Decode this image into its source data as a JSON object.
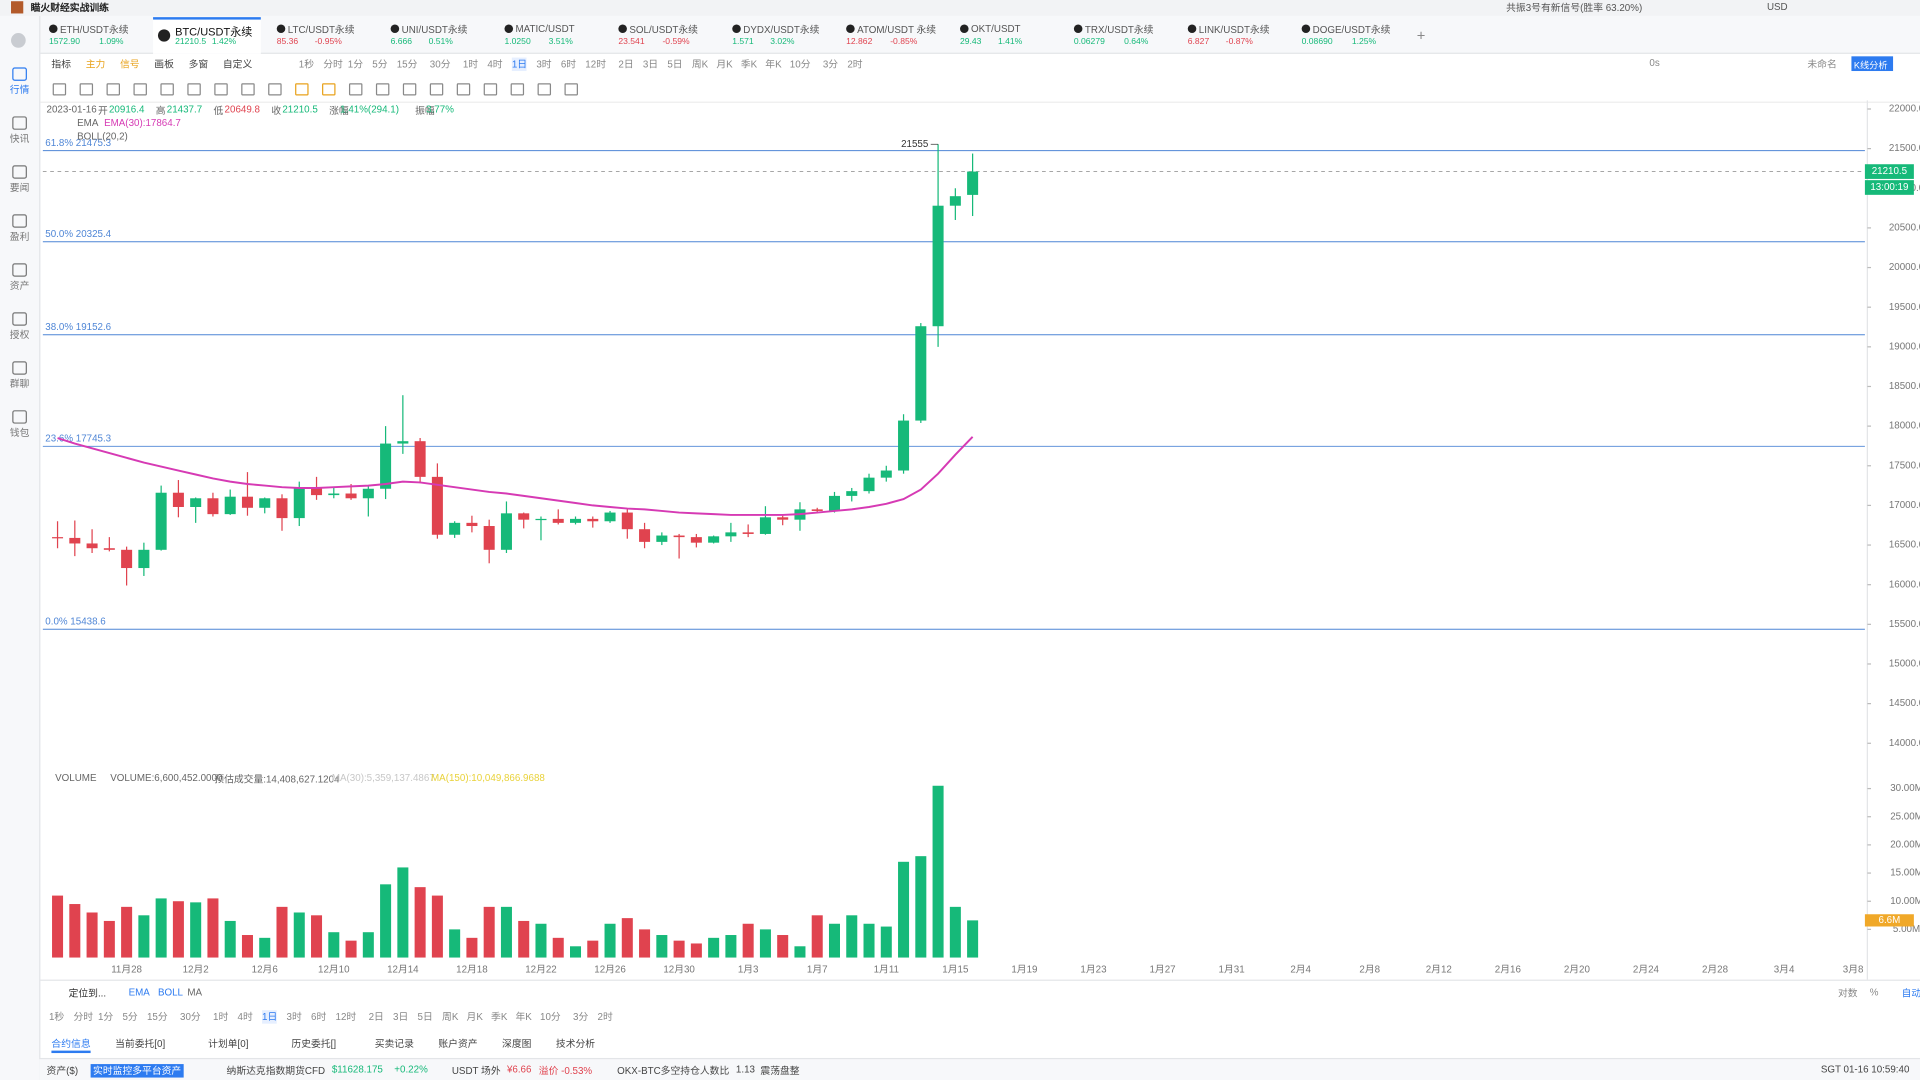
{
  "app": {
    "title": "瞄火财经实战训练",
    "signal": "共振3号有新信号(胜率 63.20%)",
    "currency": "USD"
  },
  "tabs": [
    {
      "name": "ETH/USDT永续",
      "price": "1572.90",
      "change": "1.09%"
    },
    {
      "name": "BTC/USDT永续",
      "price": "21210.5",
      "change": "1.42%"
    },
    {
      "name": "LTC/USDT永续",
      "price": "85.36",
      "change": "-0.95%"
    },
    {
      "name": "UNI/USDT永续",
      "price": "6.666",
      "change": "0.51%"
    },
    {
      "name": "MATIC/USDT",
      "price": "1.0250",
      "change": "3.51%"
    },
    {
      "name": "SOL/USDT永续",
      "price": "23.541",
      "change": "-0.59%"
    },
    {
      "name": "DYDX/USDT永续",
      "price": "1.571",
      "change": "3.02%"
    },
    {
      "name": "ATOM/USDT 永续",
      "price": "12.862",
      "change": "-0.85%"
    },
    {
      "name": "OKT/USDT",
      "price": "29.43",
      "change": "1.41%"
    },
    {
      "name": "TRX/USDT永续",
      "price": "0.06279",
      "change": "0.64%"
    },
    {
      "name": "LINK/USDT永续",
      "price": "6.827",
      "change": "-0.87%"
    },
    {
      "name": "DOGE/USDT永续",
      "price": "0.08690",
      "change": "1.25%"
    }
  ],
  "sidebar": [
    "行情",
    "快讯",
    "要闻",
    "盈利",
    "资产",
    "授权",
    "群聊",
    "钱包"
  ],
  "toolbar": {
    "items": [
      "指标",
      "主力",
      "信号",
      "画板",
      "多窗",
      "自定义"
    ],
    "intervals": [
      "1秒",
      "分时",
      "1分",
      "5分",
      "15分",
      "30分",
      "1时",
      "4时",
      "1日",
      "3时",
      "6时",
      "12时",
      "2日",
      "3日",
      "5日",
      "周K",
      "月K",
      "季K",
      "年K",
      "10分",
      "3分",
      "2时"
    ],
    "right": [
      "0s",
      "未命名",
      "K线分析"
    ]
  },
  "info": {
    "date": "2023-01-16",
    "fields": [
      {
        "label": "开",
        "value": "20916.4"
      },
      {
        "label": "高",
        "value": "21437.7"
      },
      {
        "label": "低",
        "value": "20649.8"
      },
      {
        "label": "收",
        "value": "21210.5"
      },
      {
        "label": "涨幅",
        "value": "1.41%(294.1)"
      },
      {
        "label": "振幅",
        "value": "3.77%"
      }
    ],
    "ema": "EMA",
    "ema_value": "EMA(30):17864.7",
    "boll": "BOLL(20,2)"
  },
  "volume_info": {
    "name": "VOLUME",
    "value": "VOLUME:6,600,452.0000",
    "estimate": "预估成交量:14,408,627.1204",
    "ma1": "MA(30):5,359,137.4867",
    "ma2": "MA(150):10,049,866.9688"
  },
  "chart_data": {
    "type": "candlestick",
    "candles": [
      [
        16600,
        16800,
        16460,
        16590
      ],
      [
        16590,
        16810,
        16360,
        16520
      ],
      [
        16520,
        16700,
        16400,
        16460
      ],
      [
        16460,
        16600,
        16420,
        16440
      ],
      [
        16440,
        16480,
        15990,
        16210
      ],
      [
        16210,
        16530,
        16110,
        16440
      ],
      [
        16440,
        17250,
        16430,
        17160
      ],
      [
        17160,
        17320,
        16850,
        16980
      ],
      [
        16980,
        17100,
        16780,
        17090
      ],
      [
        17090,
        17160,
        16860,
        16890
      ],
      [
        16890,
        17200,
        16880,
        17110
      ],
      [
        17110,
        17420,
        16870,
        16970
      ],
      [
        16970,
        17100,
        16900,
        17090
      ],
      [
        17090,
        17140,
        16680,
        16840
      ],
      [
        16840,
        17300,
        16740,
        17230
      ],
      [
        17230,
        17360,
        17070,
        17130
      ],
      [
        17130,
        17230,
        17090,
        17150
      ],
      [
        17150,
        17270,
        17070,
        17090
      ],
      [
        17090,
        17240,
        16860,
        17210
      ],
      [
        17210,
        18000,
        17080,
        17780
      ],
      [
        17780,
        18390,
        17650,
        17810
      ],
      [
        17810,
        17850,
        17280,
        17360
      ],
      [
        17360,
        17530,
        16580,
        16630
      ],
      [
        16630,
        16800,
        16590,
        16780
      ],
      [
        16780,
        16870,
        16660,
        16740
      ],
      [
        16740,
        16820,
        16270,
        16440
      ],
      [
        16440,
        17050,
        16400,
        16900
      ],
      [
        16900,
        16910,
        16710,
        16820
      ],
      [
        16820,
        16860,
        16560,
        16830
      ],
      [
        16830,
        16950,
        16760,
        16780
      ],
      [
        16780,
        16860,
        16760,
        16830
      ],
      [
        16830,
        16860,
        16720,
        16800
      ],
      [
        16800,
        16930,
        16780,
        16910
      ],
      [
        16910,
        16960,
        16580,
        16700
      ],
      [
        16700,
        16780,
        16460,
        16540
      ],
      [
        16540,
        16660,
        16500,
        16620
      ],
      [
        16620,
        16640,
        16330,
        16600
      ],
      [
        16600,
        16640,
        16470,
        16530
      ],
      [
        16530,
        16620,
        16520,
        16610
      ],
      [
        16610,
        16780,
        16540,
        16660
      ],
      [
        16660,
        16760,
        16600,
        16640
      ],
      [
        16640,
        16990,
        16630,
        16850
      ],
      [
        16850,
        16870,
        16750,
        16820
      ],
      [
        16820,
        17040,
        16680,
        16950
      ],
      [
        16950,
        16970,
        16900,
        16930
      ],
      [
        16930,
        17170,
        16910,
        17120
      ],
      [
        17120,
        17220,
        17050,
        17180
      ],
      [
        17180,
        17400,
        17150,
        17350
      ],
      [
        17350,
        17500,
        17300,
        17440
      ],
      [
        17440,
        18150,
        17400,
        18070
      ],
      [
        18070,
        19300,
        18040,
        19260
      ],
      [
        19260,
        21555,
        19000,
        20780
      ],
      [
        20780,
        21000,
        20600,
        20900
      ],
      [
        20916.4,
        21437.7,
        20649.8,
        21210.5
      ]
    ],
    "up_color": "#16b979",
    "down_color": "#e0434f",
    "ylim": [
      13800,
      22200
    ],
    "yticks": [
      {
        "value": 14000,
        "label": "14000.0"
      },
      {
        "value": 14500,
        "label": "14500.0"
      },
      {
        "value": 15000,
        "label": "15000.0"
      },
      {
        "value": 15500,
        "label": "15500.0"
      },
      {
        "value": 16000,
        "label": "16000.0"
      },
      {
        "value": 16500,
        "label": "16500.0"
      },
      {
        "value": 17000,
        "label": "17000.0"
      },
      {
        "value": 17500,
        "label": "17500.0"
      },
      {
        "value": 18000,
        "label": "18000.0"
      },
      {
        "value": 18500,
        "label": "18500.0"
      },
      {
        "value": 19000,
        "label": "19000.0"
      },
      {
        "value": 19500,
        "label": "19500.0"
      },
      {
        "value": 20000,
        "label": "20000.0"
      },
      {
        "value": 20500,
        "label": "20500.0"
      },
      {
        "value": 21000,
        "label": "21000.0"
      },
      {
        "value": 21500,
        "label": "21500.0"
      },
      {
        "value": 22000,
        "label": "22000.0"
      }
    ],
    "fib": [
      {
        "value": 21475.3,
        "label": "61.8% 21475.3"
      },
      {
        "value": 20325.4,
        "label": "50.0% 20325.4"
      },
      {
        "value": 19152.6,
        "label": "38.0% 19152.6"
      },
      {
        "value": 17745.3,
        "label": "23.6% 17745.3"
      },
      {
        "value": 15438.6,
        "label": "0.0% 15438.6"
      }
    ],
    "fib_color": "#4f86d6",
    "high_annotation": 21555,
    "current_price": {
      "value": 21210.5,
      "label": "21210.5"
    },
    "countdown": "13:00:19",
    "ema": {
      "name": "EMA(30)",
      "color": "#d63ab4",
      "values": [
        17850,
        17780,
        17720,
        17660,
        17600,
        17540,
        17490,
        17440,
        17390,
        17340,
        17300,
        17270,
        17250,
        17230,
        17220,
        17220,
        17230,
        17240,
        17250,
        17270,
        17300,
        17290,
        17260,
        17230,
        17200,
        17170,
        17150,
        17120,
        17090,
        17060,
        17030,
        17000,
        16980,
        16960,
        16950,
        16930,
        16910,
        16900,
        16890,
        16880,
        16880,
        16880,
        16880,
        16890,
        16910,
        16930,
        16950,
        16980,
        17020,
        17080,
        17200,
        17400,
        17640,
        17864.7
      ]
    },
    "volume": {
      "values": [
        11000000,
        9500000,
        8000000,
        6500000,
        9000000,
        7500000,
        10500000,
        10000000,
        9800000,
        10500000,
        6500000,
        4000000,
        3500000,
        9000000,
        8000000,
        7500000,
        4500000,
        3000000,
        4500000,
        13000000,
        16000000,
        12500000,
        11000000,
        5000000,
        3500000,
        9000000,
        9000000,
        6500000,
        6000000,
        3500000,
        2000000,
        3000000,
        6000000,
        7000000,
        5000000,
        4000000,
        3000000,
        2500000,
        3500000,
        4000000,
        6000000,
        5000000,
        4000000,
        2000000,
        7500000,
        6000000,
        7500000,
        6000000,
        5500000,
        17000000,
        18000000,
        30500000,
        9000000,
        6600452
      ],
      "ylim": [
        0,
        31000000
      ],
      "yticks": [
        {
          "value": 5000000,
          "label": "5.00M"
        },
        {
          "value": 10000000,
          "label": "10.00M"
        },
        {
          "value": 15000000,
          "label": "15.00M"
        },
        {
          "value": 20000000,
          "label": "20.00M"
        },
        {
          "value": 25000000,
          "label": "25.00M"
        },
        {
          "value": 30000000,
          "label": "30.00M"
        }
      ],
      "last": {
        "value": 6600452,
        "label": "6.6M"
      }
    },
    "xlabels": [
      "11月28",
      "12月2",
      "12月6",
      "12月10",
      "12月14",
      "12月18",
      "12月22",
      "12月26",
      "12月30",
      "1月3",
      "1月7",
      "1月11",
      "1月15",
      "1月19",
      "1月23",
      "1月27",
      "1月31",
      "2月4",
      "2月8",
      "2月12",
      "2月16",
      "2月20",
      "2月24",
      "2月28",
      "3月4",
      "3月8"
    ]
  },
  "bottom": {
    "locate": "定位到...",
    "indicators": [
      "EMA",
      "BOLL",
      "MA"
    ],
    "intervals": [
      "1秒",
      "分时",
      "1分",
      "5分",
      "15分",
      "30分",
      "1时",
      "4时",
      "1日",
      "3时",
      "6时",
      "12时",
      "2日",
      "3日",
      "5日",
      "周K",
      "月K",
      "季K",
      "年K",
      "10分",
      "3分",
      "2时"
    ],
    "scale": [
      "对数",
      "%",
      "自动"
    ],
    "tabs": [
      "合约信息",
      "当前委托[0]",
      "计划单[0]",
      "历史委托[]",
      "买卖记录",
      "账户资产",
      "深度图",
      "技术分析"
    ]
  },
  "status": {
    "assets": "资产($)",
    "monitor": "实时监控多平台资产",
    "nasdaq": "纳斯达克指数期货CFD",
    "nasdaq_price": "$11628.175",
    "nasdaq_change": "+0.22%",
    "otc": "USDT 场外",
    "otc_price": "¥6.66",
    "premium": "溢价 -0.53%",
    "ratio_name": "OKX-BTC多空持仓人数比",
    "ratio": "1.13",
    "trend": "震荡盘整",
    "time": "SGT 01-16 10:59:40"
  }
}
